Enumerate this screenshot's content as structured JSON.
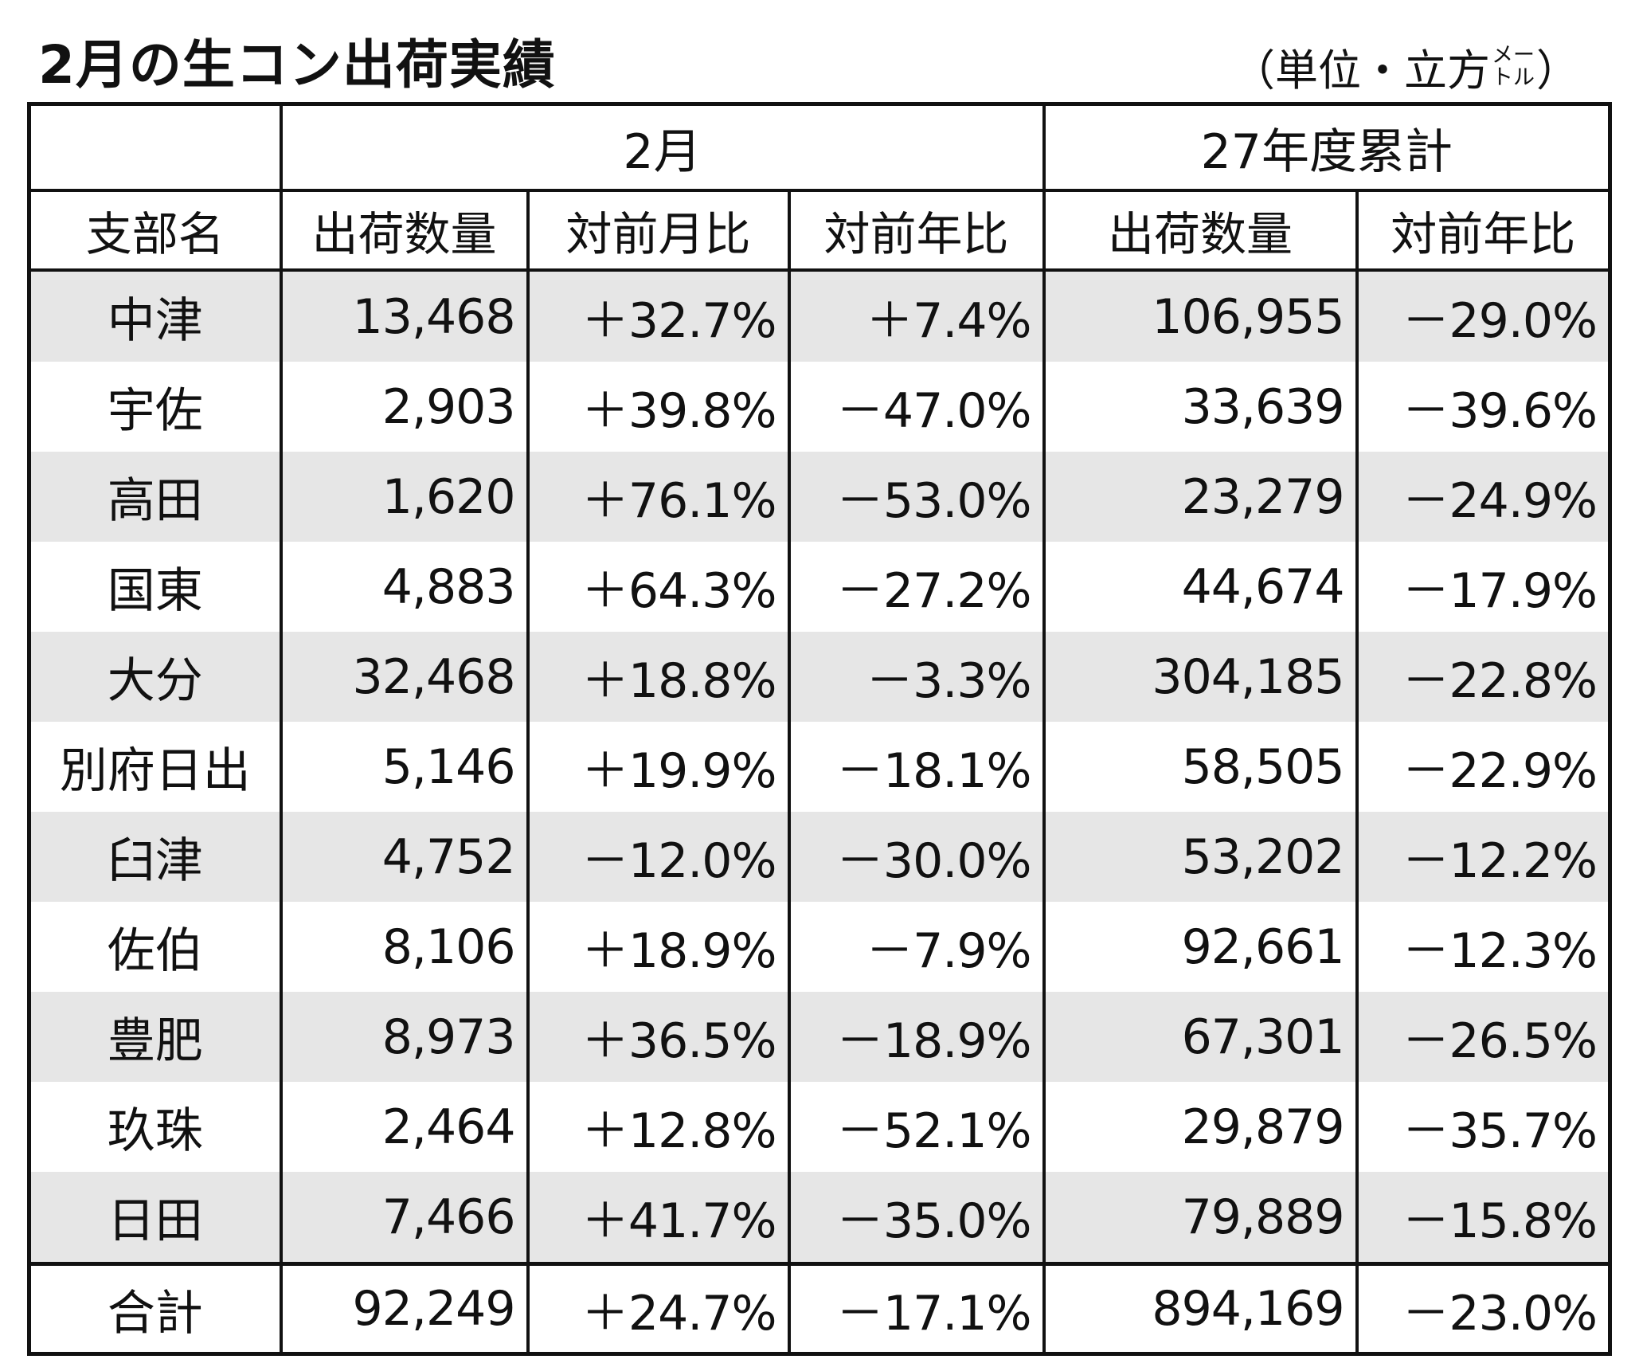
{
  "title": "2月の生コン出荷実績",
  "unit": {
    "open": "（単位・立方",
    "meter_top": "メー",
    "meter_bottom": "トル",
    "close": "）"
  },
  "header": {
    "month_group": "2月",
    "cumulative_group": "27年度累計",
    "branch": "支部名",
    "shipment_qty": "出荷数量",
    "mom": "対前月比",
    "yoy": "対前年比",
    "cum_qty": "出荷数量",
    "cum_yoy": "対前年比"
  },
  "rows": [
    {
      "name": "中津",
      "qty": "13,468",
      "mom": "＋32.7%",
      "yoy": "＋7.4%",
      "cum_qty": "106,955",
      "cum_yoy": "－29.0%"
    },
    {
      "name": "宇佐",
      "qty": "2,903",
      "mom": "＋39.8%",
      "yoy": "－47.0%",
      "cum_qty": "33,639",
      "cum_yoy": "－39.6%"
    },
    {
      "name": "高田",
      "qty": "1,620",
      "mom": "＋76.1%",
      "yoy": "－53.0%",
      "cum_qty": "23,279",
      "cum_yoy": "－24.9%"
    },
    {
      "name": "国東",
      "qty": "4,883",
      "mom": "＋64.3%",
      "yoy": "－27.2%",
      "cum_qty": "44,674",
      "cum_yoy": "－17.9%"
    },
    {
      "name": "大分",
      "qty": "32,468",
      "mom": "＋18.8%",
      "yoy": "－3.3%",
      "cum_qty": "304,185",
      "cum_yoy": "－22.8%"
    },
    {
      "name": "別府日出",
      "qty": "5,146",
      "mom": "＋19.9%",
      "yoy": "－18.1%",
      "cum_qty": "58,505",
      "cum_yoy": "－22.9%"
    },
    {
      "name": "臼津",
      "qty": "4,752",
      "mom": "－12.0%",
      "yoy": "－30.0%",
      "cum_qty": "53,202",
      "cum_yoy": "－12.2%"
    },
    {
      "name": "佐伯",
      "qty": "8,106",
      "mom": "＋18.9%",
      "yoy": "－7.9%",
      "cum_qty": "92,661",
      "cum_yoy": "－12.3%"
    },
    {
      "name": "豊肥",
      "qty": "8,973",
      "mom": "＋36.5%",
      "yoy": "－18.9%",
      "cum_qty": "67,301",
      "cum_yoy": "－26.5%"
    },
    {
      "name": "玖珠",
      "qty": "2,464",
      "mom": "＋12.8%",
      "yoy": "－52.1%",
      "cum_qty": "29,879",
      "cum_yoy": "－35.7%"
    },
    {
      "name": "日田",
      "qty": "7,466",
      "mom": "＋41.7%",
      "yoy": "－35.0%",
      "cum_qty": "79,889",
      "cum_yoy": "－15.8%"
    }
  ],
  "total": {
    "name": "合計",
    "qty": "92,249",
    "mom": "＋24.7%",
    "yoy": "－17.1%",
    "cum_qty": "894,169",
    "cum_yoy": "－23.0%"
  }
}
